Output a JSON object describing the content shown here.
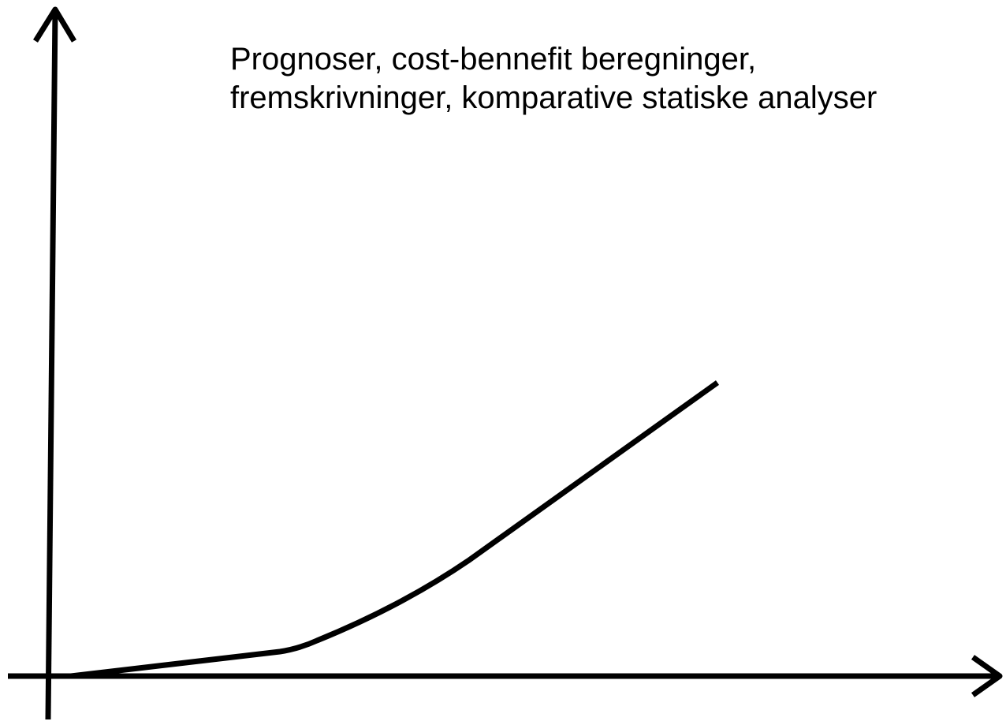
{
  "annotation": {
    "lines": [
      "Prognoser, cost-bennefit beregninger,",
      "fremskrivninger, komparative statiske analyser"
    ]
  }
}
